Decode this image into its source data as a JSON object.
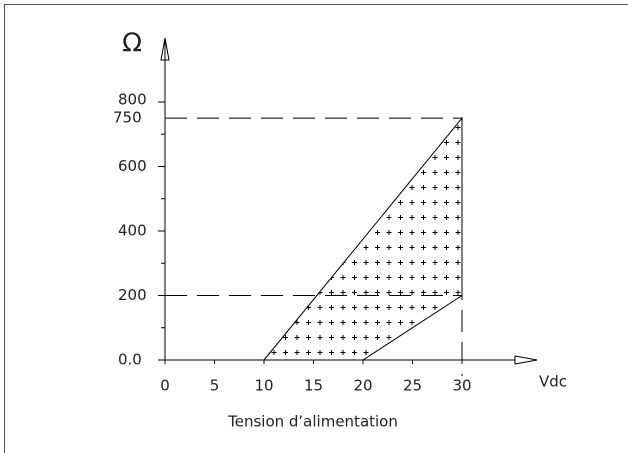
{
  "chart_data": {
    "type": "area",
    "y_label": "Ω",
    "x_label": "Vdc",
    "x_title": "Tension d’alimentation",
    "x": [
      10,
      30,
      30,
      20
    ],
    "y": [
      0,
      750,
      200,
      0
    ],
    "color": "#000000",
    "xlim": [
      0,
      30
    ],
    "ylim": [
      0,
      800
    ],
    "xticks": [
      0,
      5,
      10,
      15,
      20,
      25,
      30
    ],
    "yticks": [
      {
        "value": 0,
        "label": "0.0"
      },
      200,
      400,
      600,
      750,
      800
    ],
    "yminorticks": [
      100,
      300,
      500,
      700
    ],
    "reference_lines": {
      "y": [
        750,
        200
      ],
      "x": [
        30
      ]
    }
  }
}
